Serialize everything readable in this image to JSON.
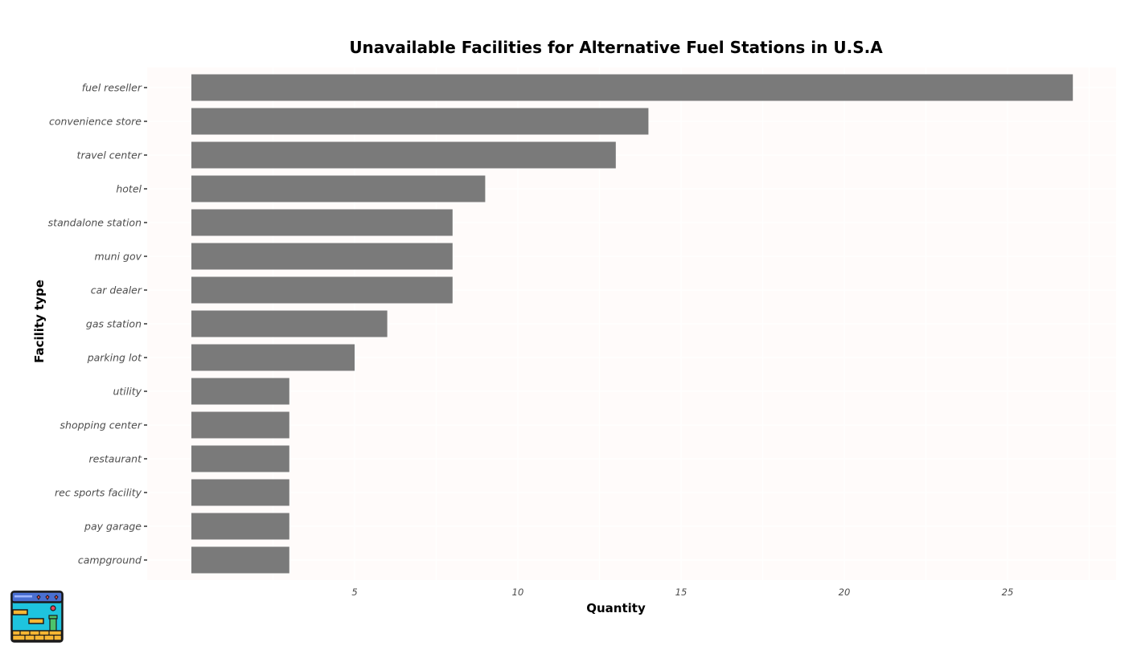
{
  "chart_data": {
    "type": "bar",
    "orientation": "horizontal",
    "title": "Unavailable Facilities for Alternative Fuel Stations in U.S.A",
    "xlabel": "Quantity",
    "ylabel": "Facility type",
    "categories": [
      "fuel reseller",
      "convenience store",
      "travel center",
      "hotel",
      "standalone station",
      "muni gov",
      "car dealer",
      "gas station",
      "parking lot",
      "utility",
      "shopping center",
      "restaurant",
      "rec sports facility",
      "pay garage",
      "campground"
    ],
    "values": [
      27,
      14,
      13,
      9,
      8,
      8,
      8,
      6,
      5,
      3,
      3,
      3,
      3,
      3,
      3
    ],
    "xticks": [
      5,
      10,
      15,
      20,
      25
    ],
    "xlim": [
      0,
      28.5
    ],
    "grid": true,
    "colors": {
      "bar": "#7a7a7a",
      "panel": "#fffbfa",
      "grid": "#ffffff"
    }
  },
  "logo": {
    "icon": "game-level-icon"
  }
}
